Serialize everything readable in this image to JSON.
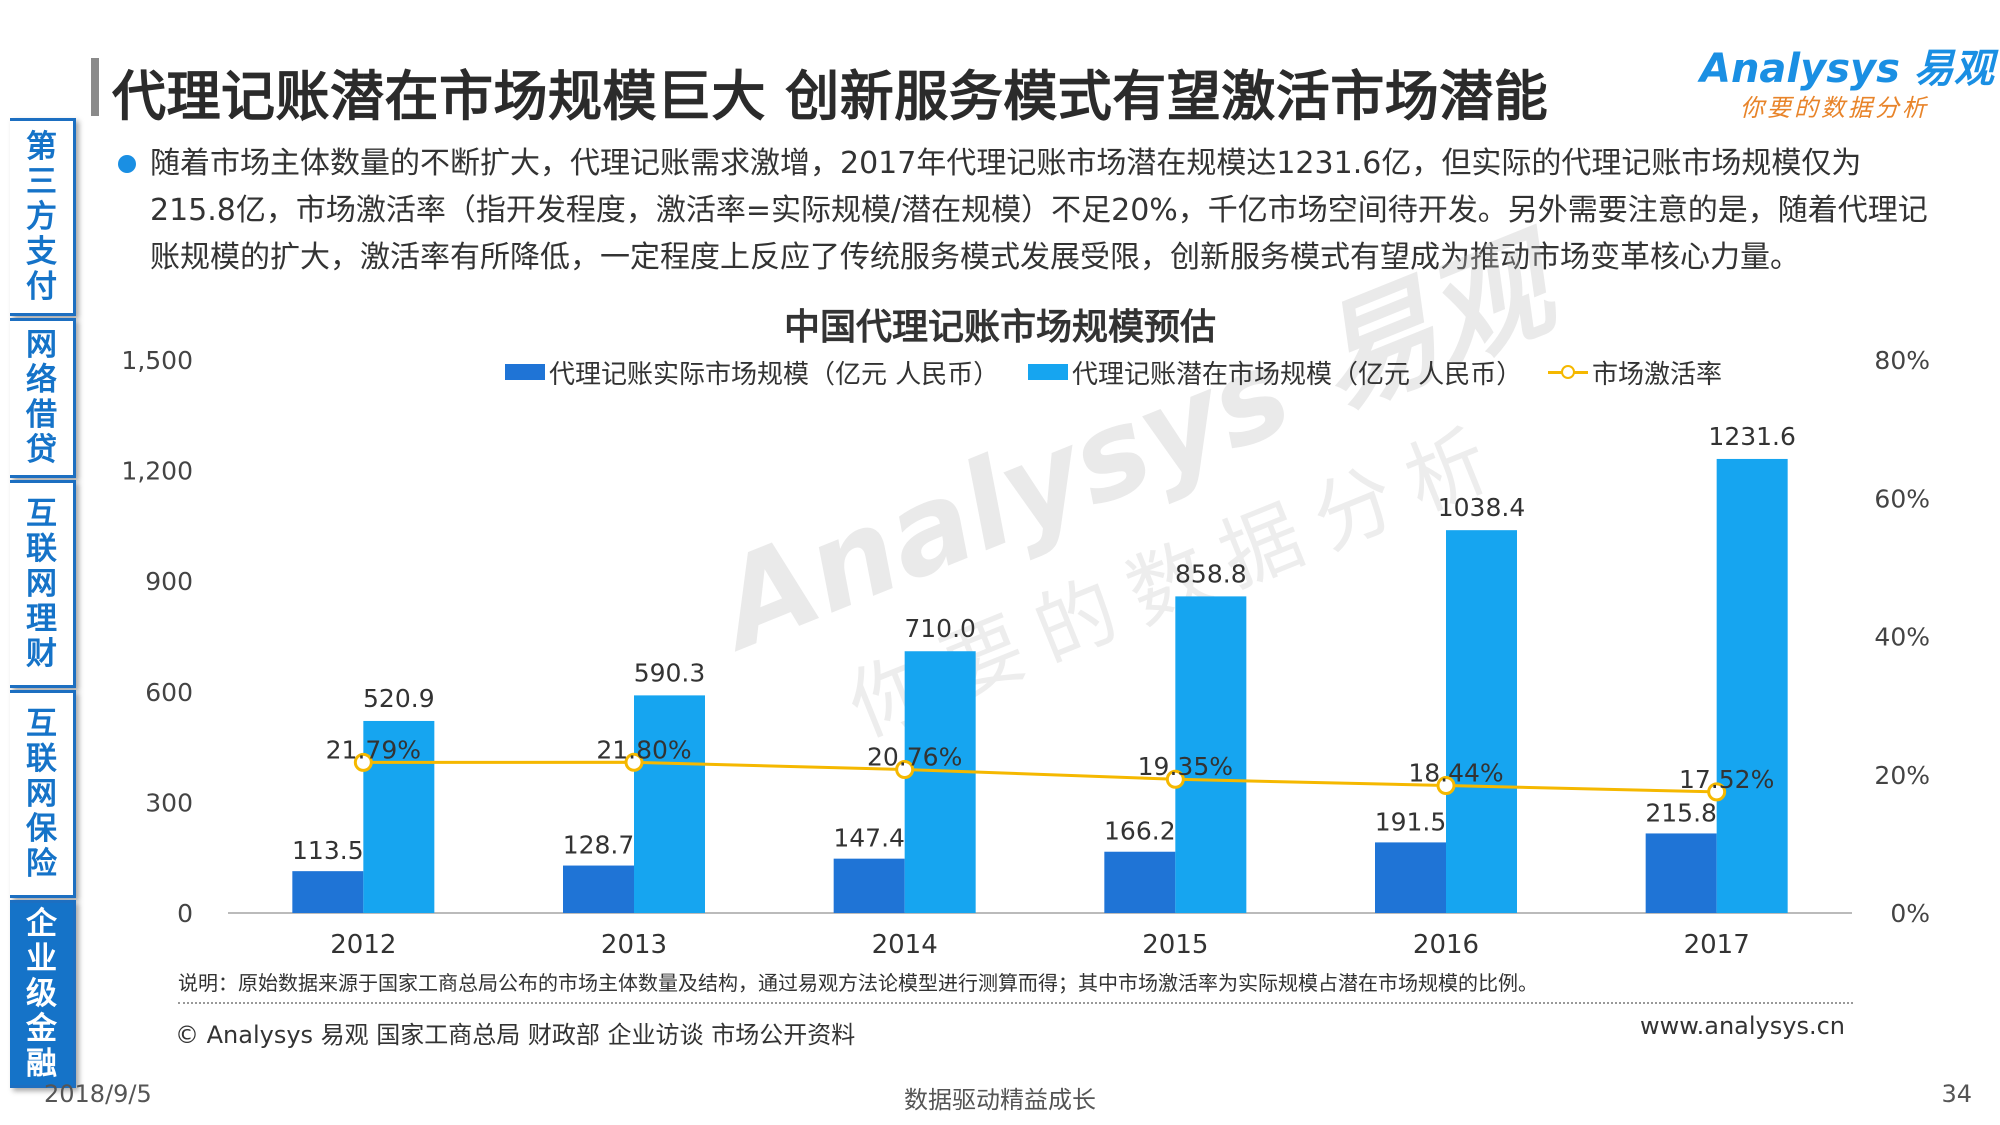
{
  "sidebar": {
    "items": [
      {
        "label": "第三方支付",
        "active": false
      },
      {
        "label": "网络借贷",
        "active": false
      },
      {
        "label": "互联网理财",
        "active": false
      },
      {
        "label": "互联网保险",
        "active": false
      },
      {
        "label": "企业级金融",
        "active": true
      }
    ]
  },
  "header": {
    "title": "代理记账潜在市场规模巨大 创新服务模式有望激活市场潜能",
    "logo_main": "Analysys 易观",
    "logo_sub": "你要的数据分析"
  },
  "bullet": "随着市场主体数量的不断扩大，代理记账需求激增，2017年代理记账市场潜在规模达1231.6亿，但实际的代理记账市场规模仅为215.8亿，市场激活率（指开发程度，激活率=实际规模/潜在规模）不足20%，千亿市场空间待开发。另外需要注意的是，随着代理记账规模的扩大，激活率有所降低，一定程度上反应了传统服务模式发展受限，创新服务模式有望成为推动市场变革核心力量。",
  "watermark": {
    "main": "Analysys 易观",
    "sub": "你要的数据分析"
  },
  "chart_data": {
    "type": "bar",
    "title": "中国代理记账市场规模预估",
    "categories": [
      "2012",
      "2013",
      "2014",
      "2015",
      "2016",
      "2017"
    ],
    "series": [
      {
        "name": "代理记账实际市场规模（亿元 人民币）",
        "type": "bar",
        "axis": "left",
        "color": "#1f74d6",
        "values": [
          113.5,
          128.7,
          147.4,
          166.2,
          191.5,
          215.8
        ],
        "labels": [
          "113.5",
          "128.7",
          "147.4",
          "166.2",
          "191.5",
          "215.8"
        ]
      },
      {
        "name": "代理记账潜在市场规模（亿元 人民币）",
        "type": "bar",
        "axis": "left",
        "color": "#16a5f0",
        "values": [
          520.9,
          590.3,
          710.0,
          858.8,
          1038.4,
          1231.6
        ],
        "labels": [
          "520.9",
          "590.3",
          "710.0",
          "858.8",
          "1038.4",
          "1231.6"
        ]
      },
      {
        "name": "市场激活率",
        "type": "line",
        "axis": "right",
        "color": "#f5b800",
        "values": [
          21.79,
          21.8,
          20.76,
          19.35,
          18.44,
          17.52
        ],
        "labels": [
          "21.79%",
          "21.80%",
          "20.76%",
          "19.35%",
          "18.44%",
          "17.52%"
        ]
      }
    ],
    "y_left": {
      "min": 0,
      "max": 1500,
      "ticks": [
        "0",
        "300",
        "600",
        "900",
        "1,200",
        "1,500"
      ]
    },
    "y_right": {
      "min": 0,
      "max": 80,
      "ticks": [
        "0%",
        "20%",
        "40%",
        "60%",
        "80%"
      ]
    },
    "grid": false,
    "legend_position": "top"
  },
  "note": "说明：原始数据来源于国家工商总局公布的市场主体数量及结构，通过易观方法论模型进行测算而得；其中市场激活率为实际规模占潜在市场规模的比例。",
  "source": "© Analysys 易观 国家工商总局 财政部 企业访谈 市场公开资料",
  "website": "www.analysys.cn",
  "footer": {
    "date": "2018/9/5",
    "center": "数据驱动精益成长",
    "page": "34"
  }
}
